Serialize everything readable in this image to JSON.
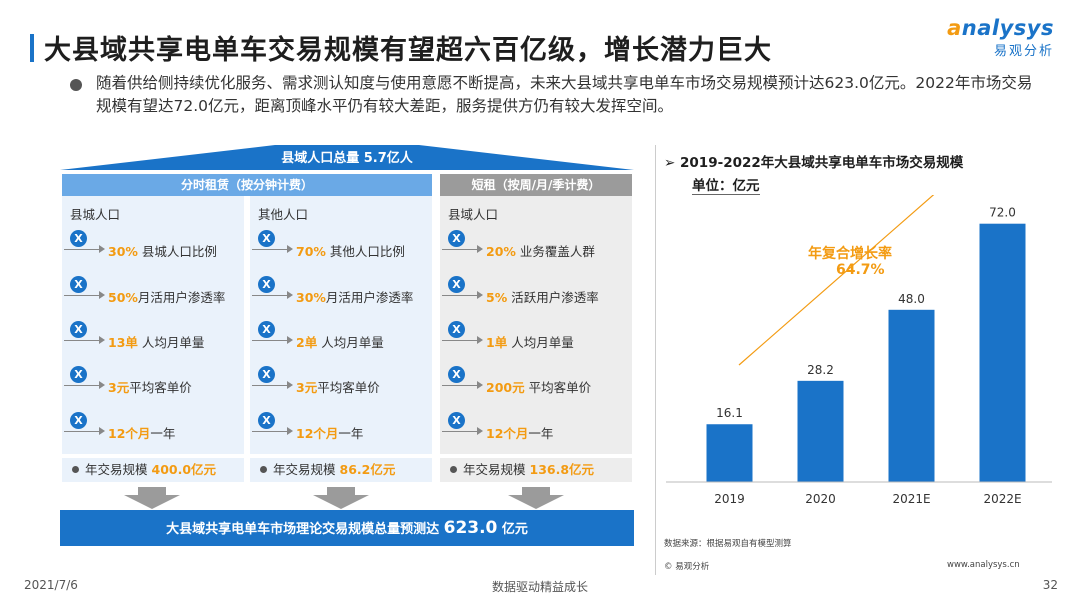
{
  "title": "大县域共享电单车交易规模有望超六百亿级，增长潜力巨大",
  "logo": {
    "en_prefix": "a",
    "en_rest": "nalysys",
    "cn": "易观分析"
  },
  "intro": "随着供给侧持续优化服务、需求测认知度与使用意愿不断提高，未来大县域共享电单车市场交易规模预计达623.0亿元。2022年市场交易规模有望达72.0亿元，距离顶峰水平仍有较大差距，服务提供方仍有较大发挥空间。",
  "flow": {
    "roof": "县域人口总量 5.7亿人",
    "header_rental": "分时租赁（按分钟计费）",
    "header_short": "短租（按周/月/季计费）",
    "columns": [
      {
        "sub": "县城人口",
        "rows": [
          {
            "v": "30%",
            "t": "县城人口比例"
          },
          {
            "v": "50%",
            "t": "月活用户渗透率"
          },
          {
            "v": "13单",
            "t": "人均月单量"
          },
          {
            "v": "3元",
            "t": "平均客单价"
          },
          {
            "v": "12个月",
            "t": "一年"
          }
        ],
        "total_label": "年交易规模",
        "total_value": "400.0亿元"
      },
      {
        "sub": "其他人口",
        "rows": [
          {
            "v": "70%",
            "t": "其他人口比例"
          },
          {
            "v": "30%",
            "t": "月活用户渗透率"
          },
          {
            "v": "2单",
            "t": "人均月单量"
          },
          {
            "v": "3元",
            "t": "平均客单价"
          },
          {
            "v": "12个月",
            "t": "一年"
          }
        ],
        "total_label": "年交易规模",
        "total_value": "86.2亿元"
      },
      {
        "sub": "县域人口",
        "rows": [
          {
            "v": "20%",
            "t": "业务覆盖人群"
          },
          {
            "v": "5%",
            "t": "活跃用户渗透率"
          },
          {
            "v": "1单",
            "t": "人均月单量"
          },
          {
            "v": "200元",
            "t": "平均客单价"
          },
          {
            "v": "12个月",
            "t": "一年"
          }
        ],
        "total_label": "年交易规模",
        "total_value": "136.8亿元"
      }
    ],
    "bottom_prefix": "大县域共享电单车市场理论交易规模总量预测达",
    "bottom_value": "623.0",
    "bottom_suffix": "亿元"
  },
  "chart_title": "2019-2022年大县域共享电单车市场交易规模",
  "chart_unit": "单位：亿元",
  "cagr_label": "年复合增长率",
  "cagr_value": "64.7%",
  "chart_data": {
    "type": "bar",
    "title": "2019-2022年大县域共享电单车市场交易规模",
    "unit": "亿元",
    "categories": [
      "2019",
      "2020",
      "2021E",
      "2022E"
    ],
    "values": [
      16.1,
      28.2,
      48.0,
      72.0
    ],
    "value_labels": [
      "16.1",
      "28.2",
      "48.0",
      "72.0"
    ],
    "ylim": [
      0,
      80
    ],
    "bar_color": "#1a73c8",
    "grid": false
  },
  "source": "数据来源：根据易观自有模型测算",
  "copyright": "© 易观分析",
  "site": "www.analysys.cn",
  "footer": {
    "date": "2021/7/6",
    "slogan": "数据驱动精益成长",
    "page": "32"
  },
  "colors": {
    "accent": "#1a73c8",
    "highlight": "#f39b12",
    "panel": "#eaf2fb",
    "gray_panel": "#ededed"
  }
}
